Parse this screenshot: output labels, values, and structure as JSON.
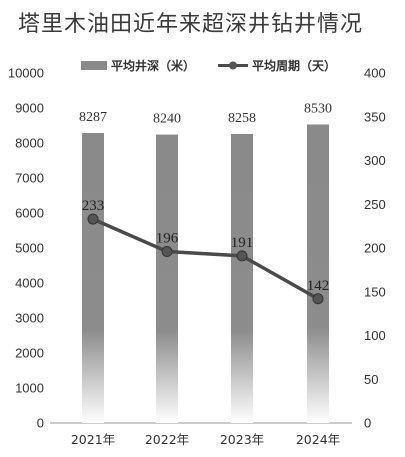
{
  "title": "塔里木油田近年来超深井钻井情况",
  "chart_data": {
    "type": "bar+line",
    "categories": [
      "2021年",
      "2022年",
      "2023年",
      "2024年"
    ],
    "series": [
      {
        "name": "平均井深（米）",
        "type": "bar",
        "axis": "left",
        "values": [
          8287,
          8240,
          8258,
          8530
        ]
      },
      {
        "name": "平均周期（天）",
        "type": "line",
        "axis": "right",
        "values": [
          233,
          196,
          191,
          142
        ]
      }
    ],
    "y_left": {
      "ylim": [
        0,
        10000
      ],
      "ticks": [
        "0",
        "1000",
        "2000",
        "3000",
        "4000",
        "5000",
        "6000",
        "7000",
        "8000",
        "9000",
        "10000"
      ]
    },
    "y_right": {
      "ylim": [
        0,
        400
      ],
      "ticks": [
        "0",
        "50",
        "100",
        "150",
        "200",
        "250",
        "300",
        "350",
        "400"
      ]
    },
    "legend_position": "top",
    "grid": false,
    "colors": {
      "bar": "#8a8a8a",
      "line": "#4a4a4a",
      "marker": "#555555",
      "text": "#333333"
    }
  }
}
